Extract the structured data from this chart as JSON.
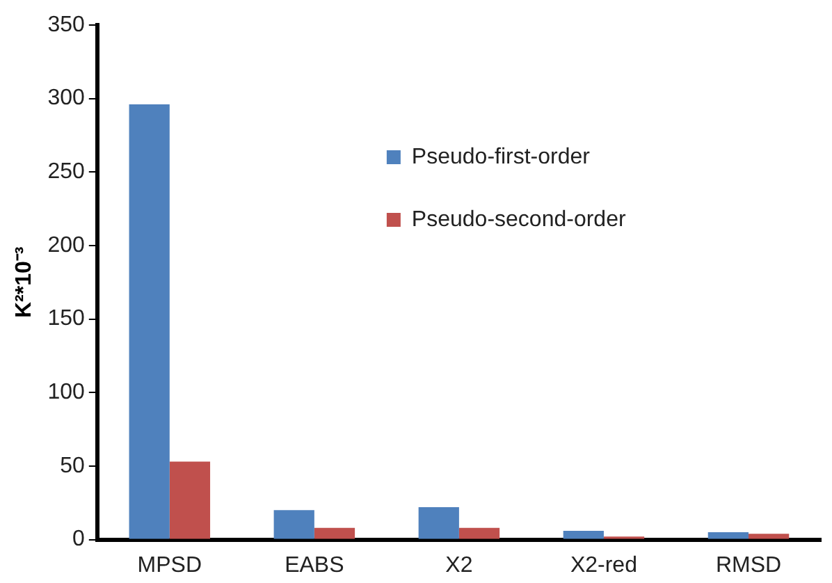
{
  "chart_data": {
    "type": "bar",
    "ylabel": "K²*10⁻³",
    "categories": [
      "MPSD",
      "EABS",
      "X2",
      "X2-red",
      "RMSD"
    ],
    "series": [
      {
        "name": "Pseudo-first-order",
        "color": "#4f81bd",
        "values": [
          296,
          20,
          22,
          6,
          5
        ]
      },
      {
        "name": "Pseudo-second-order",
        "color": "#c0504d",
        "values": [
          53,
          8,
          8,
          2,
          4
        ]
      }
    ],
    "ylim": [
      0,
      350
    ],
    "yticks": [
      0,
      50,
      100,
      150,
      200,
      250,
      300,
      350
    ],
    "grid": false,
    "legend": "top right"
  }
}
